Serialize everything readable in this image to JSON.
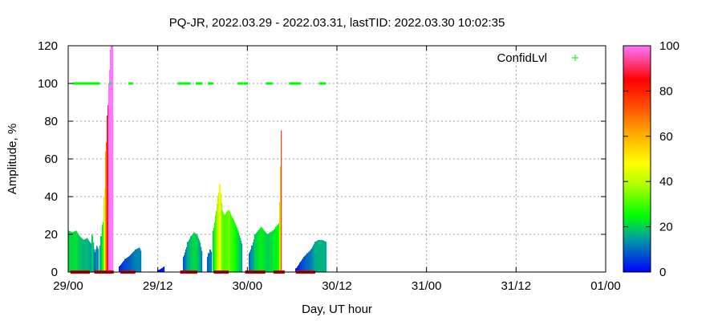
{
  "chart_data": {
    "type": "area",
    "title": "PQ-JR, 2022.03.29 - 2022.03.31, lastTID: 2022.03.30 10:02:35",
    "xlabel": "Day, UT hour",
    "ylabel": "Amplitude, %",
    "x_unit": "hours since 29/00",
    "xlim": [
      0,
      72
    ],
    "ylim": [
      0,
      120
    ],
    "x_ticks": [
      {
        "x": 0,
        "label": "29/00"
      },
      {
        "x": 12,
        "label": "29/12"
      },
      {
        "x": 24,
        "label": "30/00"
      },
      {
        "x": 36,
        "label": "30/12"
      },
      {
        "x": 48,
        "label": "31/00"
      },
      {
        "x": 60,
        "label": "31/12"
      },
      {
        "x": 72,
        "label": "01/00"
      }
    ],
    "y_ticks": [
      0,
      20,
      40,
      60,
      80,
      100,
      120
    ],
    "grid": true,
    "legend": {
      "position": "top-right",
      "label": "ConfidLvl",
      "color": "#00ff00"
    },
    "colorbar": {
      "min": 0,
      "max": 100,
      "ticks": [
        0,
        20,
        40,
        60,
        80,
        100
      ]
    },
    "amplitude_series": [
      {
        "x": [
          0.0,
          0.5,
          1.0,
          1.5,
          2.0,
          2.5,
          3.0,
          3.2,
          3.5,
          3.8,
          4.0
        ],
        "y": [
          22,
          21,
          22,
          19,
          17,
          18,
          15,
          20,
          10,
          14,
          12
        ]
      },
      {
        "x": [
          4.2,
          4.4,
          4.6,
          4.8,
          5.0,
          5.2,
          5.4,
          5.6,
          5.8,
          6.0
        ],
        "y": [
          14,
          19,
          25,
          40,
          64,
          83,
          100,
          118,
          120,
          120
        ]
      },
      {
        "x": [
          6.8,
          7.2,
          7.6,
          8.0,
          8.5,
          9.0,
          9.5,
          9.7
        ],
        "y": [
          3,
          5,
          7,
          8,
          10,
          12,
          13,
          11
        ]
      },
      {
        "x": [
          12.0,
          12.5,
          12.8
        ],
        "y": [
          1,
          2,
          3
        ]
      },
      {
        "x": [
          15.4,
          15.7,
          16.0,
          16.4,
          16.8,
          17.2,
          17.6,
          17.9
        ],
        "y": [
          8,
          12,
          16,
          19,
          21,
          20,
          16,
          10
        ]
      },
      {
        "x": [
          18.6,
          18.8,
          19.0,
          19.2
        ],
        "y": [
          8,
          10,
          12,
          10
        ]
      },
      {
        "x": [
          19.4,
          19.7,
          20.0,
          20.3,
          20.6,
          20.9,
          21.2,
          21.5,
          21.8,
          22.1,
          22.4,
          22.7,
          23.0,
          23.3
        ],
        "y": [
          22,
          30,
          40,
          47,
          33,
          30,
          32,
          33,
          30,
          28,
          25,
          22,
          18,
          14
        ]
      },
      {
        "x": [
          24.2,
          24.6,
          25.0,
          25.4,
          25.8,
          26.2,
          26.6,
          27.0,
          27.4,
          27.8,
          28.2,
          28.5
        ],
        "y": [
          10,
          14,
          20,
          22,
          24,
          22,
          20,
          21,
          22,
          24,
          26,
          79
        ]
      },
      {
        "x": [
          30.5,
          31.0,
          31.5,
          32.0,
          32.5,
          33.0,
          33.5,
          34.0,
          34.5
        ],
        "y": [
          2,
          5,
          8,
          10,
          12,
          16,
          17,
          17,
          16
        ]
      }
    ],
    "confidence_segments": [
      {
        "x_start": 0.7,
        "x_end": 4.1,
        "value": 100
      },
      {
        "x_start": 5.6,
        "x_end": 5.7,
        "value": 100
      },
      {
        "x_start": 8.2,
        "x_end": 8.6,
        "value": 100
      },
      {
        "x_start": 14.8,
        "x_end": 16.4,
        "value": 100
      },
      {
        "x_start": 17.2,
        "x_end": 18.0,
        "value": 100
      },
      {
        "x_start": 18.8,
        "x_end": 19.4,
        "value": 100
      },
      {
        "x_start": 22.8,
        "x_end": 23.3,
        "value": 100
      },
      {
        "x_start": 23.6,
        "x_end": 24.0,
        "value": 100
      },
      {
        "x_start": 26.6,
        "x_end": 27.4,
        "value": 100
      },
      {
        "x_start": 29.7,
        "x_end": 31.0,
        "value": 100
      },
      {
        "x_start": 33.7,
        "x_end": 34.5,
        "value": 100
      }
    ],
    "zero_marks": [
      {
        "x_start": 0.3,
        "x_end": 2.9
      },
      {
        "x_start": 3.5,
        "x_end": 6.1
      },
      {
        "x_start": 7.0,
        "x_end": 9.0
      },
      {
        "x_start": 15.0,
        "x_end": 17.3
      },
      {
        "x_start": 19.5,
        "x_end": 21.5
      },
      {
        "x_start": 23.7,
        "x_end": 26.4
      },
      {
        "x_start": 27.5,
        "x_end": 29.0
      },
      {
        "x_start": 30.5,
        "x_end": 33.1
      }
    ]
  }
}
